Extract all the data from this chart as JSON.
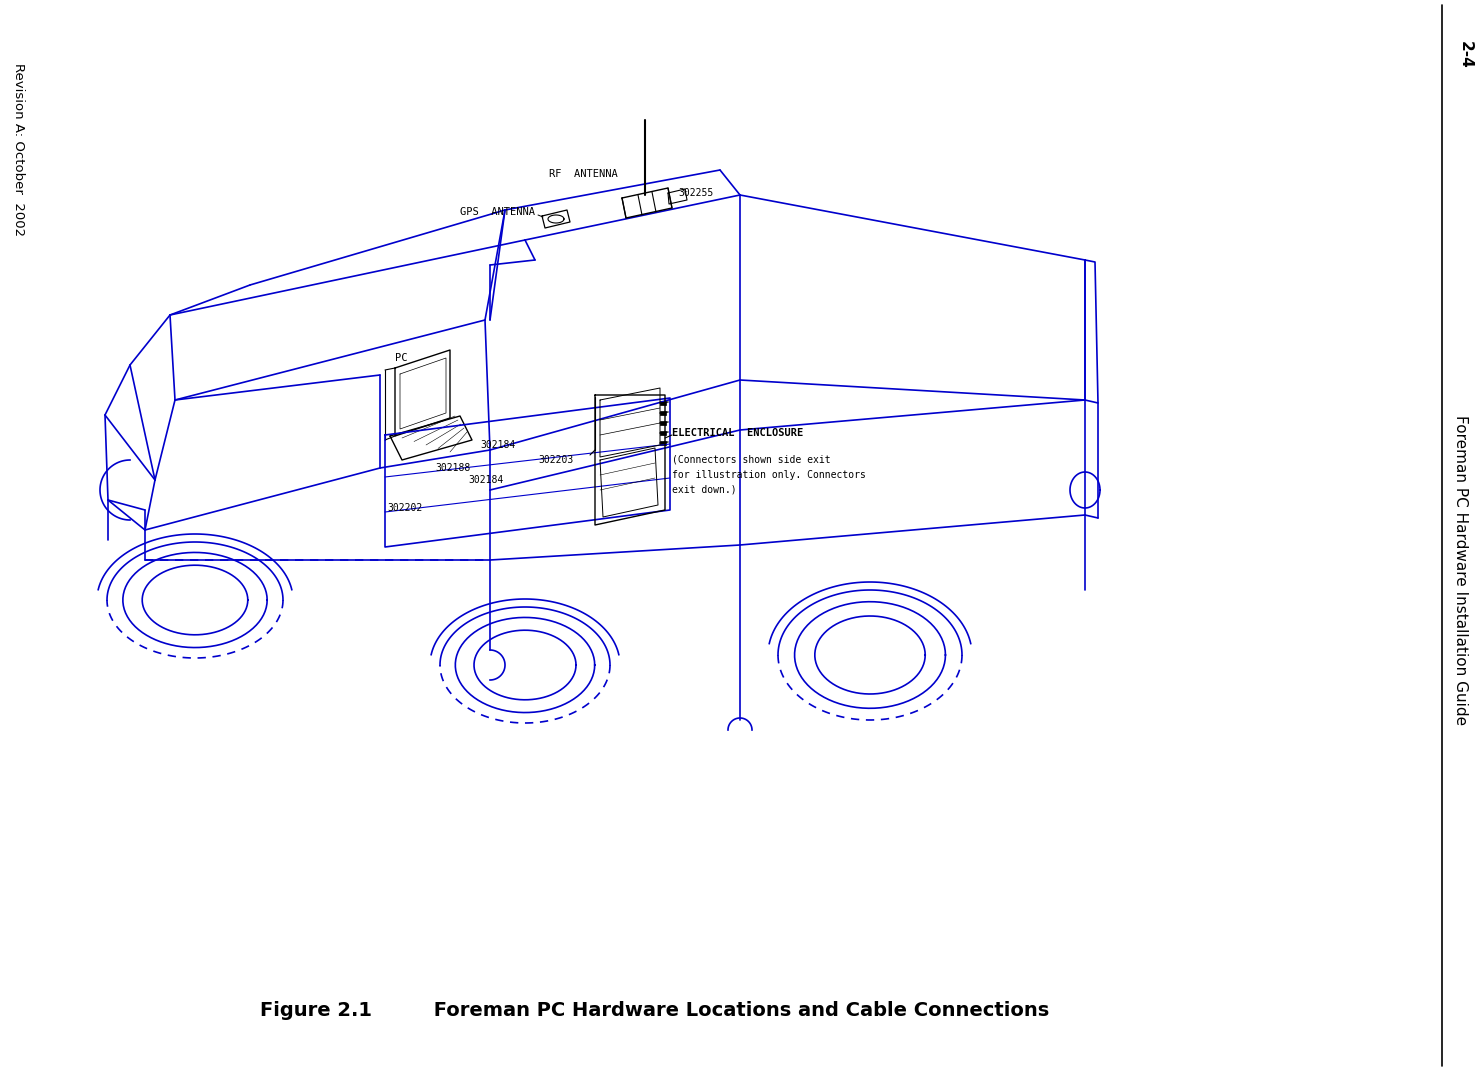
{
  "bg_color": "#ffffff",
  "blue": "#0000cc",
  "black": "#000000",
  "right_header_page": "2-4",
  "right_header_title": "Foreman PC Hardware Installation Guide",
  "left_footer_revision": "Revision A: October  2002",
  "figure_caption_bold": "Figure 2.1",
  "figure_caption_rest": "     Foreman PC Hardware Locations and Cable Connections",
  "label_rf_antenna": "RF  ANTENNA",
  "label_gps_antenna": "GPS  ANTENNA",
  "label_302255": "302255",
  "label_pc": "PC",
  "label_302184_top": "302184",
  "label_302188": "302188",
  "label_302203": "302203",
  "label_302184_bot": "302184",
  "label_302202": "302202",
  "label_elec_enclosure": "ELECTRICAL  ENCLOSURE",
  "note_line1": "(Connectors shown side exit",
  "note_line2": "for illustration only. Connectors",
  "note_line3": "exit down.)"
}
